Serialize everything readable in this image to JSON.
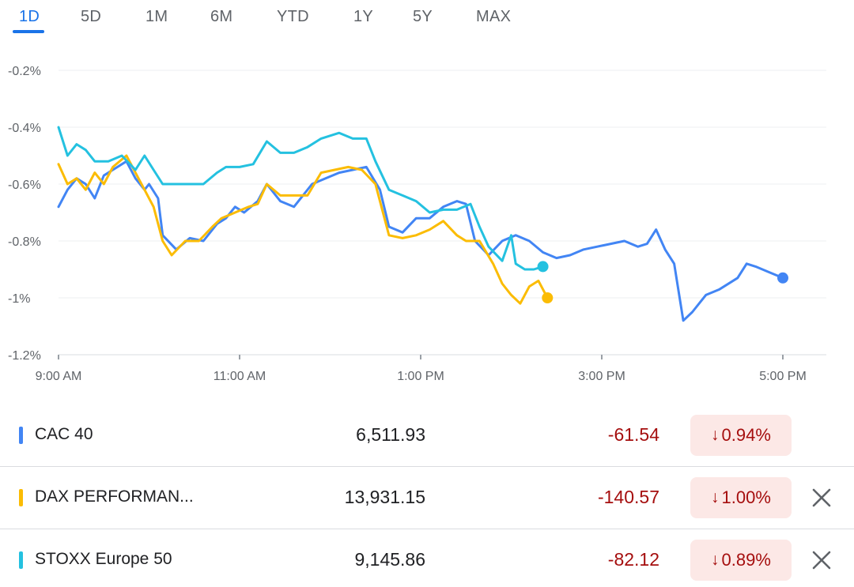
{
  "tabs": [
    {
      "label": "1D",
      "active": true
    },
    {
      "label": "5D",
      "active": false
    },
    {
      "label": "1M",
      "active": false
    },
    {
      "label": "6M",
      "active": false
    },
    {
      "label": "YTD",
      "active": false
    },
    {
      "label": "1Y",
      "active": false
    },
    {
      "label": "5Y",
      "active": false
    },
    {
      "label": "MAX",
      "active": false
    }
  ],
  "chart_data": {
    "type": "line",
    "y_ticks": [
      "-0.2%",
      "-0.4%",
      "-0.6%",
      "-0.8%",
      "-1%",
      "-1.2%"
    ],
    "y_tick_values": [
      -0.2,
      -0.4,
      -0.6,
      -0.8,
      -1.0,
      -1.2
    ],
    "x_ticks": [
      "9:00 AM",
      "11:00 AM",
      "1:00 PM",
      "3:00 PM",
      "5:00 PM"
    ],
    "x_tick_values": [
      9,
      11,
      13,
      15,
      17
    ],
    "xlim": [
      9,
      17.5
    ],
    "ylim": [
      -1.2,
      -0.2
    ],
    "grid": true,
    "series": [
      {
        "name": "CAC 40",
        "color": "#4285f4",
        "points": [
          [
            9.0,
            -0.68
          ],
          [
            9.1,
            -0.62
          ],
          [
            9.2,
            -0.58
          ],
          [
            9.3,
            -0.6
          ],
          [
            9.4,
            -0.65
          ],
          [
            9.5,
            -0.57
          ],
          [
            9.6,
            -0.55
          ],
          [
            9.75,
            -0.52
          ],
          [
            9.85,
            -0.58
          ],
          [
            9.95,
            -0.62
          ],
          [
            10.0,
            -0.6
          ],
          [
            10.1,
            -0.65
          ],
          [
            10.15,
            -0.78
          ],
          [
            10.3,
            -0.83
          ],
          [
            10.45,
            -0.79
          ],
          [
            10.6,
            -0.8
          ],
          [
            10.75,
            -0.74
          ],
          [
            10.85,
            -0.72
          ],
          [
            10.95,
            -0.68
          ],
          [
            11.05,
            -0.7
          ],
          [
            11.2,
            -0.66
          ],
          [
            11.3,
            -0.6
          ],
          [
            11.45,
            -0.66
          ],
          [
            11.6,
            -0.68
          ],
          [
            11.8,
            -0.6
          ],
          [
            11.95,
            -0.58
          ],
          [
            12.1,
            -0.56
          ],
          [
            12.25,
            -0.55
          ],
          [
            12.4,
            -0.54
          ],
          [
            12.55,
            -0.62
          ],
          [
            12.65,
            -0.75
          ],
          [
            12.8,
            -0.77
          ],
          [
            12.95,
            -0.72
          ],
          [
            13.1,
            -0.72
          ],
          [
            13.25,
            -0.68
          ],
          [
            13.4,
            -0.66
          ],
          [
            13.5,
            -0.67
          ],
          [
            13.6,
            -0.8
          ],
          [
            13.75,
            -0.85
          ],
          [
            13.9,
            -0.8
          ],
          [
            14.05,
            -0.78
          ],
          [
            14.2,
            -0.8
          ],
          [
            14.35,
            -0.84
          ],
          [
            14.5,
            -0.86
          ],
          [
            14.65,
            -0.85
          ],
          [
            14.8,
            -0.83
          ],
          [
            14.95,
            -0.82
          ],
          [
            15.1,
            -0.81
          ],
          [
            15.25,
            -0.8
          ],
          [
            15.4,
            -0.82
          ],
          [
            15.5,
            -0.81
          ],
          [
            15.6,
            -0.76
          ],
          [
            15.7,
            -0.83
          ],
          [
            15.8,
            -0.88
          ],
          [
            15.9,
            -1.08
          ],
          [
            16.0,
            -1.05
          ],
          [
            16.15,
            -0.99
          ],
          [
            16.3,
            -0.97
          ],
          [
            16.5,
            -0.93
          ],
          [
            16.6,
            -0.88
          ],
          [
            16.7,
            -0.89
          ],
          [
            16.85,
            -0.91
          ],
          [
            17.0,
            -0.93
          ]
        ]
      },
      {
        "name": "DAX PERFORMAN...",
        "color": "#fbbc04",
        "points": [
          [
            9.0,
            -0.53
          ],
          [
            9.1,
            -0.6
          ],
          [
            9.2,
            -0.58
          ],
          [
            9.3,
            -0.62
          ],
          [
            9.4,
            -0.56
          ],
          [
            9.5,
            -0.6
          ],
          [
            9.6,
            -0.54
          ],
          [
            9.75,
            -0.5
          ],
          [
            9.85,
            -0.56
          ],
          [
            9.95,
            -0.62
          ],
          [
            10.05,
            -0.68
          ],
          [
            10.15,
            -0.8
          ],
          [
            10.25,
            -0.85
          ],
          [
            10.4,
            -0.8
          ],
          [
            10.55,
            -0.8
          ],
          [
            10.7,
            -0.75
          ],
          [
            10.8,
            -0.72
          ],
          [
            10.95,
            -0.7
          ],
          [
            11.1,
            -0.68
          ],
          [
            11.2,
            -0.67
          ],
          [
            11.3,
            -0.6
          ],
          [
            11.45,
            -0.64
          ],
          [
            11.6,
            -0.64
          ],
          [
            11.75,
            -0.64
          ],
          [
            11.9,
            -0.56
          ],
          [
            12.05,
            -0.55
          ],
          [
            12.2,
            -0.54
          ],
          [
            12.35,
            -0.55
          ],
          [
            12.5,
            -0.6
          ],
          [
            12.65,
            -0.78
          ],
          [
            12.8,
            -0.79
          ],
          [
            12.95,
            -0.78
          ],
          [
            13.1,
            -0.76
          ],
          [
            13.25,
            -0.73
          ],
          [
            13.4,
            -0.78
          ],
          [
            13.5,
            -0.8
          ],
          [
            13.65,
            -0.8
          ],
          [
            13.8,
            -0.88
          ],
          [
            13.9,
            -0.95
          ],
          [
            14.0,
            -0.99
          ],
          [
            14.1,
            -1.02
          ],
          [
            14.2,
            -0.96
          ],
          [
            14.3,
            -0.94
          ],
          [
            14.4,
            -1.0
          ]
        ]
      },
      {
        "name": "STOXX Europe 50",
        "color": "#24c1e0",
        "points": [
          [
            9.0,
            -0.4
          ],
          [
            9.1,
            -0.5
          ],
          [
            9.2,
            -0.46
          ],
          [
            9.3,
            -0.48
          ],
          [
            9.4,
            -0.52
          ],
          [
            9.55,
            -0.52
          ],
          [
            9.7,
            -0.5
          ],
          [
            9.85,
            -0.55
          ],
          [
            9.95,
            -0.5
          ],
          [
            10.05,
            -0.55
          ],
          [
            10.15,
            -0.6
          ],
          [
            10.3,
            -0.6
          ],
          [
            10.45,
            -0.6
          ],
          [
            10.6,
            -0.6
          ],
          [
            10.75,
            -0.56
          ],
          [
            10.85,
            -0.54
          ],
          [
            11.0,
            -0.54
          ],
          [
            11.15,
            -0.53
          ],
          [
            11.3,
            -0.45
          ],
          [
            11.45,
            -0.49
          ],
          [
            11.6,
            -0.49
          ],
          [
            11.75,
            -0.47
          ],
          [
            11.9,
            -0.44
          ],
          [
            12.1,
            -0.42
          ],
          [
            12.25,
            -0.44
          ],
          [
            12.4,
            -0.44
          ],
          [
            12.5,
            -0.52
          ],
          [
            12.65,
            -0.62
          ],
          [
            12.8,
            -0.64
          ],
          [
            12.95,
            -0.66
          ],
          [
            13.1,
            -0.7
          ],
          [
            13.25,
            -0.69
          ],
          [
            13.4,
            -0.69
          ],
          [
            13.55,
            -0.67
          ],
          [
            13.65,
            -0.75
          ],
          [
            13.75,
            -0.82
          ],
          [
            13.9,
            -0.87
          ],
          [
            14.0,
            -0.78
          ],
          [
            14.05,
            -0.88
          ],
          [
            14.15,
            -0.9
          ],
          [
            14.25,
            -0.9
          ],
          [
            14.35,
            -0.89
          ]
        ]
      }
    ]
  },
  "rows": [
    {
      "name": "CAC 40",
      "color": "#4285f4",
      "price": "6,511.93",
      "change": "-61.54",
      "arrow": "↓",
      "pct": "0.94%",
      "removable": false
    },
    {
      "name": "DAX PERFORMAN...",
      "color": "#fbbc04",
      "price": "13,931.15",
      "change": "-140.57",
      "arrow": "↓",
      "pct": "1.00%",
      "removable": true
    },
    {
      "name": "STOXX Europe 50",
      "color": "#24c1e0",
      "price": "9,145.86",
      "change": "-82.12",
      "arrow": "↓",
      "pct": "0.89%",
      "removable": true
    }
  ]
}
